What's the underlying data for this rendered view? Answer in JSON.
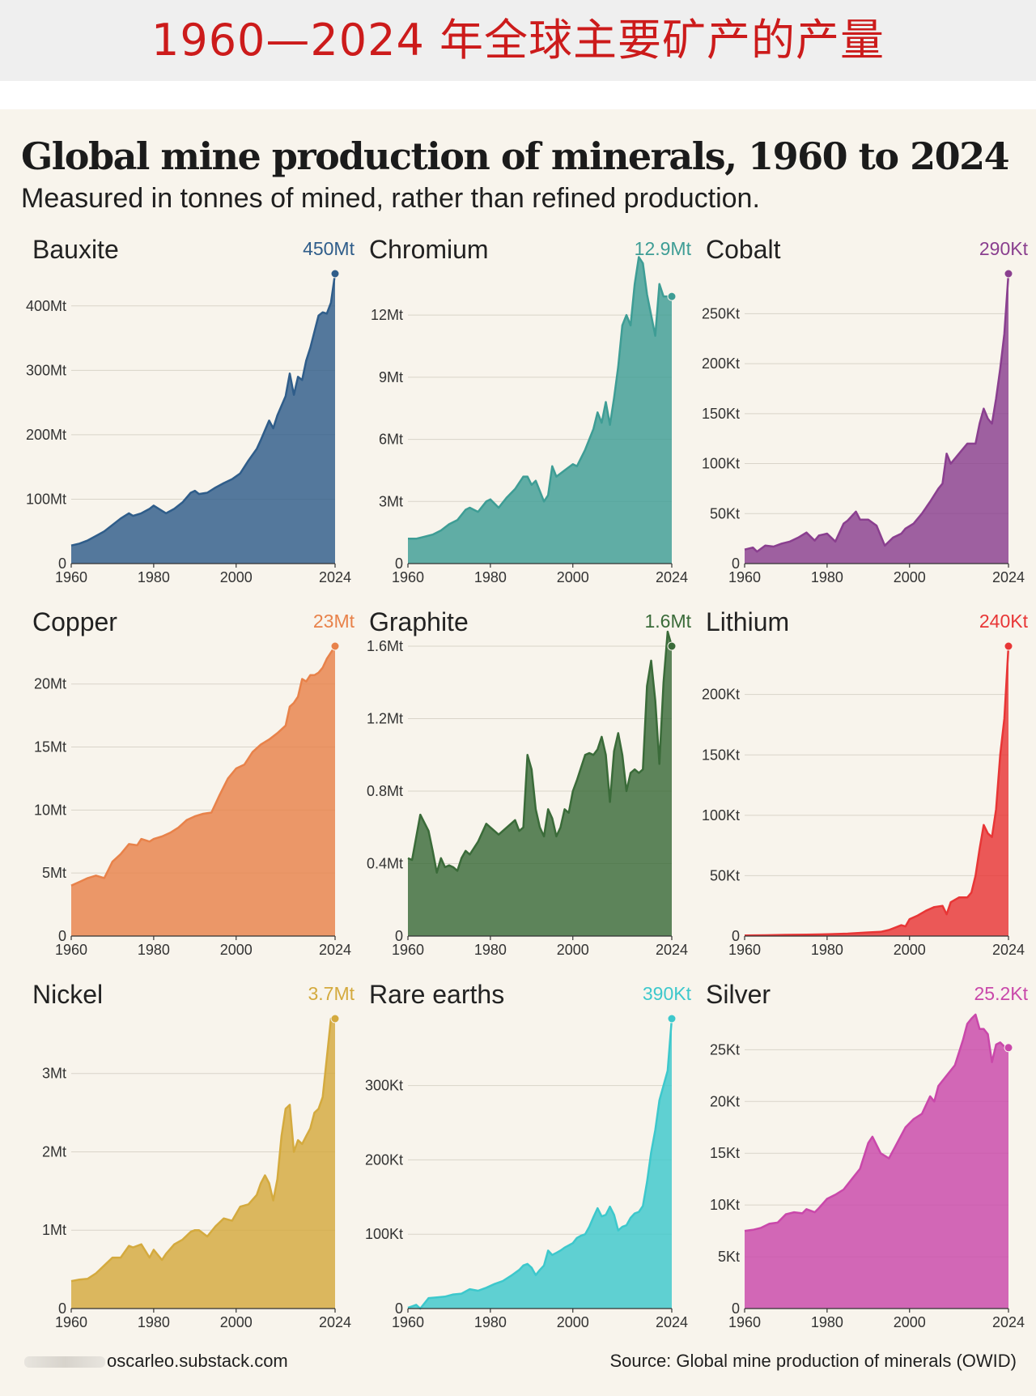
{
  "banner": {
    "text": "1960—2024 年全球主要矿产的产量"
  },
  "header": {
    "title": "Global mine production of minerals, 1960 to 2024",
    "subtitle": "Measured in tonnes of mined, rather than refined production."
  },
  "footer": {
    "credit": "oscarleo.substack.com",
    "source": "Source: Global mine production of minerals (OWID)"
  },
  "chart_data": [
    {
      "type": "area",
      "title": "Bauxite",
      "total_label": "450Mt",
      "color": "#2f5d8a",
      "xlim": [
        1960,
        2024
      ],
      "x_ticks": [
        1960,
        1980,
        2000,
        2024
      ],
      "ylim": [
        0,
        450
      ],
      "y_ticks": [
        {
          "v": 0,
          "label": "0"
        },
        {
          "v": 100,
          "label": "100Mt"
        },
        {
          "v": 200,
          "label": "200Mt"
        },
        {
          "v": 300,
          "label": "300Mt"
        },
        {
          "v": 400,
          "label": "400Mt"
        }
      ],
      "unit": "Mt",
      "x": [
        1960,
        1962,
        1964,
        1966,
        1968,
        1970,
        1972,
        1974,
        1975,
        1977,
        1979,
        1980,
        1982,
        1983,
        1985,
        1987,
        1989,
        1990,
        1991,
        1993,
        1995,
        1997,
        1999,
        2001,
        2003,
        2005,
        2006,
        2008,
        2009,
        2010,
        2012,
        2013,
        2014,
        2015,
        2016,
        2017,
        2018,
        2020,
        2021,
        2022,
        2023,
        2024
      ],
      "values": [
        28,
        31,
        36,
        43,
        50,
        60,
        70,
        78,
        74,
        78,
        85,
        90,
        82,
        78,
        85,
        95,
        110,
        113,
        108,
        110,
        118,
        125,
        131,
        140,
        160,
        178,
        192,
        222,
        210,
        230,
        260,
        295,
        262,
        290,
        285,
        315,
        335,
        385,
        390,
        388,
        405,
        450
      ]
    },
    {
      "type": "area",
      "title": "Chromium",
      "total_label": "12.9Mt",
      "color": "#3e9d95",
      "xlim": [
        1960,
        2024
      ],
      "x_ticks": [
        1960,
        1980,
        2000,
        2024
      ],
      "ylim": [
        0,
        14
      ],
      "y_ticks": [
        {
          "v": 0,
          "label": "0"
        },
        {
          "v": 3,
          "label": "3Mt"
        },
        {
          "v": 6,
          "label": "6Mt"
        },
        {
          "v": 9,
          "label": "9Mt"
        },
        {
          "v": 12,
          "label": "12Mt"
        }
      ],
      "unit": "Mt",
      "x": [
        1960,
        1962,
        1964,
        1966,
        1968,
        1970,
        1972,
        1974,
        1975,
        1977,
        1979,
        1980,
        1982,
        1984,
        1986,
        1988,
        1989,
        1990,
        1991,
        1993,
        1994,
        1995,
        1996,
        1998,
        2000,
        2001,
        2003,
        2005,
        2006,
        2007,
        2008,
        2009,
        2010,
        2011,
        2012,
        2013,
        2014,
        2015,
        2016,
        2017,
        2018,
        2019,
        2020,
        2021,
        2022,
        2024
      ],
      "values": [
        1.2,
        1.2,
        1.3,
        1.4,
        1.6,
        1.9,
        2.1,
        2.6,
        2.7,
        2.5,
        3.0,
        3.1,
        2.7,
        3.2,
        3.6,
        4.2,
        4.2,
        3.8,
        4.0,
        3.0,
        3.3,
        4.7,
        4.2,
        4.5,
        4.8,
        4.7,
        5.5,
        6.5,
        7.3,
        6.8,
        7.8,
        6.7,
        8.0,
        9.5,
        11.5,
        12.0,
        11.5,
        13.5,
        14.8,
        14.5,
        13.0,
        12.0,
        11.0,
        13.5,
        12.9,
        12.9
      ]
    },
    {
      "type": "area",
      "title": "Cobalt",
      "total_label": "290Kt",
      "color": "#8a3f8f",
      "xlim": [
        1960,
        2024
      ],
      "x_ticks": [
        1960,
        1980,
        2000,
        2024
      ],
      "ylim": [
        0,
        290
      ],
      "y_ticks": [
        {
          "v": 0,
          "label": "0"
        },
        {
          "v": 50,
          "label": "50Kt"
        },
        {
          "v": 100,
          "label": "100Kt"
        },
        {
          "v": 150,
          "label": "150Kt"
        },
        {
          "v": 200,
          "label": "200Kt"
        },
        {
          "v": 250,
          "label": "250Kt"
        }
      ],
      "unit": "Kt",
      "x": [
        1960,
        1962,
        1963,
        1965,
        1967,
        1969,
        1971,
        1973,
        1975,
        1977,
        1978,
        1980,
        1982,
        1984,
        1985,
        1987,
        1988,
        1990,
        1992,
        1994,
        1996,
        1998,
        1999,
        2001,
        2003,
        2005,
        2007,
        2008,
        2009,
        2010,
        2012,
        2014,
        2016,
        2017,
        2018,
        2019,
        2020,
        2021,
        2022,
        2023,
        2024
      ],
      "values": [
        14,
        16,
        12,
        18,
        17,
        20,
        22,
        26,
        31,
        23,
        28,
        30,
        22,
        40,
        43,
        52,
        44,
        44,
        38,
        18,
        26,
        30,
        35,
        40,
        50,
        62,
        75,
        80,
        110,
        100,
        110,
        120,
        120,
        140,
        155,
        145,
        140,
        165,
        195,
        230,
        290
      ]
    },
    {
      "type": "area",
      "title": "Copper",
      "total_label": "23Mt",
      "color": "#e8824a",
      "xlim": [
        1960,
        2024
      ],
      "x_ticks": [
        1960,
        1980,
        2000,
        2024
      ],
      "ylim": [
        0,
        23
      ],
      "y_ticks": [
        {
          "v": 0,
          "label": "0"
        },
        {
          "v": 5,
          "label": "5Mt"
        },
        {
          "v": 10,
          "label": "10Mt"
        },
        {
          "v": 15,
          "label": "15Mt"
        },
        {
          "v": 20,
          "label": "20Mt"
        }
      ],
      "unit": "Mt",
      "x": [
        1960,
        1962,
        1964,
        1966,
        1968,
        1970,
        1972,
        1974,
        1976,
        1977,
        1979,
        1980,
        1982,
        1984,
        1986,
        1988,
        1990,
        1992,
        1994,
        1995,
        1996,
        1998,
        2000,
        2002,
        2004,
        2006,
        2008,
        2010,
        2012,
        2013,
        2014,
        2015,
        2016,
        2017,
        2018,
        2019,
        2020,
        2021,
        2022,
        2024
      ],
      "values": [
        4.0,
        4.3,
        4.6,
        4.8,
        4.6,
        5.9,
        6.5,
        7.3,
        7.2,
        7.7,
        7.5,
        7.7,
        7.9,
        8.2,
        8.6,
        9.2,
        9.5,
        9.7,
        9.8,
        10.5,
        11.2,
        12.5,
        13.3,
        13.6,
        14.6,
        15.2,
        15.6,
        16.1,
        16.7,
        18.2,
        18.5,
        19.0,
        20.4,
        20.2,
        20.7,
        20.7,
        20.9,
        21.3,
        22.0,
        23.0
      ]
    },
    {
      "type": "area",
      "title": "Graphite",
      "total_label": "1.6Mt",
      "color": "#3a6b39",
      "xlim": [
        1960,
        2024
      ],
      "x_ticks": [
        1960,
        1980,
        2000,
        2024
      ],
      "ylim": [
        0,
        1.6
      ],
      "y_ticks": [
        {
          "v": 0,
          "label": "0"
        },
        {
          "v": 0.4,
          "label": "0.4Mt"
        },
        {
          "v": 0.8,
          "label": "0.8Mt"
        },
        {
          "v": 1.2,
          "label": "1.2Mt"
        },
        {
          "v": 1.6,
          "label": "1.6Mt"
        }
      ],
      "unit": "Mt",
      "x": [
        1960,
        1961,
        1963,
        1965,
        1966,
        1967,
        1968,
        1969,
        1970,
        1971,
        1972,
        1973,
        1974,
        1975,
        1977,
        1979,
        1980,
        1982,
        1983,
        1985,
        1986,
        1987,
        1988,
        1989,
        1990,
        1991,
        1992,
        1993,
        1994,
        1995,
        1996,
        1997,
        1998,
        1999,
        2000,
        2001,
        2002,
        2003,
        2004,
        2005,
        2006,
        2007,
        2008,
        2009,
        2010,
        2011,
        2012,
        2013,
        2014,
        2015,
        2016,
        2017,
        2018,
        2019,
        2020,
        2021,
        2022,
        2023,
        2024
      ],
      "values": [
        0.43,
        0.42,
        0.67,
        0.58,
        0.47,
        0.35,
        0.43,
        0.38,
        0.39,
        0.38,
        0.36,
        0.43,
        0.47,
        0.45,
        0.52,
        0.62,
        0.6,
        0.56,
        0.58,
        0.62,
        0.64,
        0.58,
        0.6,
        1.0,
        0.92,
        0.7,
        0.6,
        0.55,
        0.7,
        0.65,
        0.55,
        0.6,
        0.7,
        0.68,
        0.8,
        0.86,
        0.93,
        1.0,
        1.01,
        1.0,
        1.03,
        1.1,
        1.0,
        0.74,
        1.02,
        1.12,
        1.0,
        0.8,
        0.9,
        0.92,
        0.9,
        0.92,
        1.38,
        1.52,
        1.3,
        0.95,
        1.4,
        1.68,
        1.6
      ]
    },
    {
      "type": "area",
      "title": "Lithium",
      "total_label": "240Kt",
      "color": "#e83636",
      "xlim": [
        1960,
        2024
      ],
      "x_ticks": [
        1960,
        1980,
        2000,
        2024
      ],
      "ylim": [
        0,
        240
      ],
      "y_ticks": [
        {
          "v": 0,
          "label": "0"
        },
        {
          "v": 50,
          "label": "50Kt"
        },
        {
          "v": 100,
          "label": "100Kt"
        },
        {
          "v": 150,
          "label": "150Kt"
        },
        {
          "v": 200,
          "label": "200Kt"
        }
      ],
      "unit": "Kt",
      "x": [
        1960,
        1965,
        1970,
        1975,
        1980,
        1985,
        1990,
        1993,
        1995,
        1998,
        1999,
        2000,
        2002,
        2004,
        2006,
        2008,
        2009,
        2010,
        2012,
        2014,
        2015,
        2016,
        2017,
        2018,
        2019,
        2020,
        2021,
        2022,
        2023,
        2024
      ],
      "values": [
        0.5,
        0.7,
        1,
        1.2,
        1.5,
        2,
        3,
        3.5,
        5,
        9,
        8,
        14,
        17,
        21,
        24,
        25,
        18,
        28,
        32,
        32,
        36,
        50,
        72,
        92,
        85,
        82,
        105,
        150,
        180,
        240
      ]
    },
    {
      "type": "area",
      "title": "Nickel",
      "total_label": "3.7Mt",
      "color": "#d4aa3e",
      "xlim": [
        1960,
        2024
      ],
      "x_ticks": [
        1960,
        1980,
        2000,
        2024
      ],
      "ylim": [
        0,
        3.7
      ],
      "y_ticks": [
        {
          "v": 0,
          "label": "0"
        },
        {
          "v": 1,
          "label": "1Mt"
        },
        {
          "v": 2,
          "label": "2Mt"
        },
        {
          "v": 3,
          "label": "3Mt"
        }
      ],
      "unit": "Mt",
      "x": [
        1960,
        1962,
        1964,
        1966,
        1968,
        1970,
        1972,
        1974,
        1975,
        1977,
        1979,
        1980,
        1982,
        1983,
        1985,
        1987,
        1989,
        1990,
        1991,
        1993,
        1995,
        1997,
        1999,
        2001,
        2003,
        2005,
        2006,
        2007,
        2008,
        2009,
        2010,
        2011,
        2012,
        2013,
        2014,
        2015,
        2016,
        2017,
        2018,
        2019,
        2020,
        2021,
        2022,
        2023,
        2024
      ],
      "values": [
        0.35,
        0.37,
        0.38,
        0.45,
        0.55,
        0.65,
        0.65,
        0.8,
        0.78,
        0.82,
        0.65,
        0.75,
        0.62,
        0.7,
        0.82,
        0.88,
        0.98,
        1.0,
        1.0,
        0.92,
        1.05,
        1.15,
        1.12,
        1.3,
        1.33,
        1.45,
        1.6,
        1.7,
        1.6,
        1.38,
        1.65,
        2.2,
        2.55,
        2.6,
        2.0,
        2.15,
        2.1,
        2.2,
        2.3,
        2.5,
        2.55,
        2.7,
        3.2,
        3.7,
        3.7
      ]
    },
    {
      "type": "area",
      "title": "Rare earths",
      "total_label": "390Kt",
      "color": "#3dc8cc",
      "xlim": [
        1960,
        2024
      ],
      "x_ticks": [
        1960,
        1980,
        2000,
        2024
      ],
      "ylim": [
        0,
        390
      ],
      "y_ticks": [
        {
          "v": 0,
          "label": "0"
        },
        {
          "v": 100,
          "label": "100Kt"
        },
        {
          "v": 200,
          "label": "200Kt"
        },
        {
          "v": 300,
          "label": "300Kt"
        }
      ],
      "unit": "Kt",
      "x": [
        1960,
        1962,
        1963,
        1965,
        1967,
        1969,
        1971,
        1973,
        1975,
        1977,
        1979,
        1981,
        1983,
        1985,
        1987,
        1988,
        1989,
        1990,
        1991,
        1992,
        1993,
        1994,
        1995,
        1996,
        1997,
        1998,
        1999,
        2000,
        2001,
        2002,
        2003,
        2004,
        2005,
        2006,
        2007,
        2008,
        2009,
        2010,
        2011,
        2012,
        2013,
        2014,
        2015,
        2016,
        2017,
        2018,
        2019,
        2020,
        2021,
        2022,
        2023,
        2024
      ],
      "values": [
        1,
        5,
        0,
        14,
        15,
        16,
        19,
        20,
        26,
        24,
        28,
        33,
        37,
        44,
        52,
        58,
        60,
        55,
        45,
        52,
        58,
        78,
        72,
        75,
        78,
        82,
        85,
        88,
        95,
        98,
        100,
        110,
        123,
        135,
        124,
        126,
        137,
        126,
        105,
        110,
        112,
        122,
        128,
        130,
        138,
        170,
        210,
        240,
        280,
        300,
        320,
        390
      ]
    },
    {
      "type": "area",
      "title": "Silver",
      "total_label": "25.2Kt",
      "color": "#c948aa",
      "xlim": [
        1960,
        2024
      ],
      "x_ticks": [
        1960,
        1980,
        2000,
        2024
      ],
      "ylim": [
        0,
        28
      ],
      "y_ticks": [
        {
          "v": 0,
          "label": "0"
        },
        {
          "v": 5,
          "label": "5Kt"
        },
        {
          "v": 10,
          "label": "10Kt"
        },
        {
          "v": 15,
          "label": "15Kt"
        },
        {
          "v": 20,
          "label": "20Kt"
        },
        {
          "v": 25,
          "label": "25Kt"
        }
      ],
      "unit": "Kt",
      "x": [
        1960,
        1962,
        1964,
        1966,
        1968,
        1970,
        1972,
        1974,
        1975,
        1977,
        1978,
        1980,
        1982,
        1984,
        1986,
        1988,
        1990,
        1991,
        1993,
        1995,
        1997,
        1999,
        2001,
        2003,
        2005,
        2006,
        2007,
        2009,
        2011,
        2013,
        2014,
        2015,
        2016,
        2017,
        2018,
        2019,
        2020,
        2021,
        2022,
        2023,
        2024
      ],
      "values": [
        7.5,
        7.6,
        7.8,
        8.2,
        8.3,
        9.1,
        9.3,
        9.2,
        9.6,
        9.3,
        9.7,
        10.6,
        11.0,
        11.5,
        12.5,
        13.5,
        16.0,
        16.6,
        15.0,
        14.5,
        16.0,
        17.5,
        18.3,
        18.8,
        20.5,
        20.0,
        21.5,
        22.5,
        23.5,
        26.0,
        27.5,
        28.0,
        28.4,
        27.0,
        27.0,
        26.5,
        23.8,
        25.5,
        25.7,
        25.3,
        25.2
      ]
    }
  ]
}
